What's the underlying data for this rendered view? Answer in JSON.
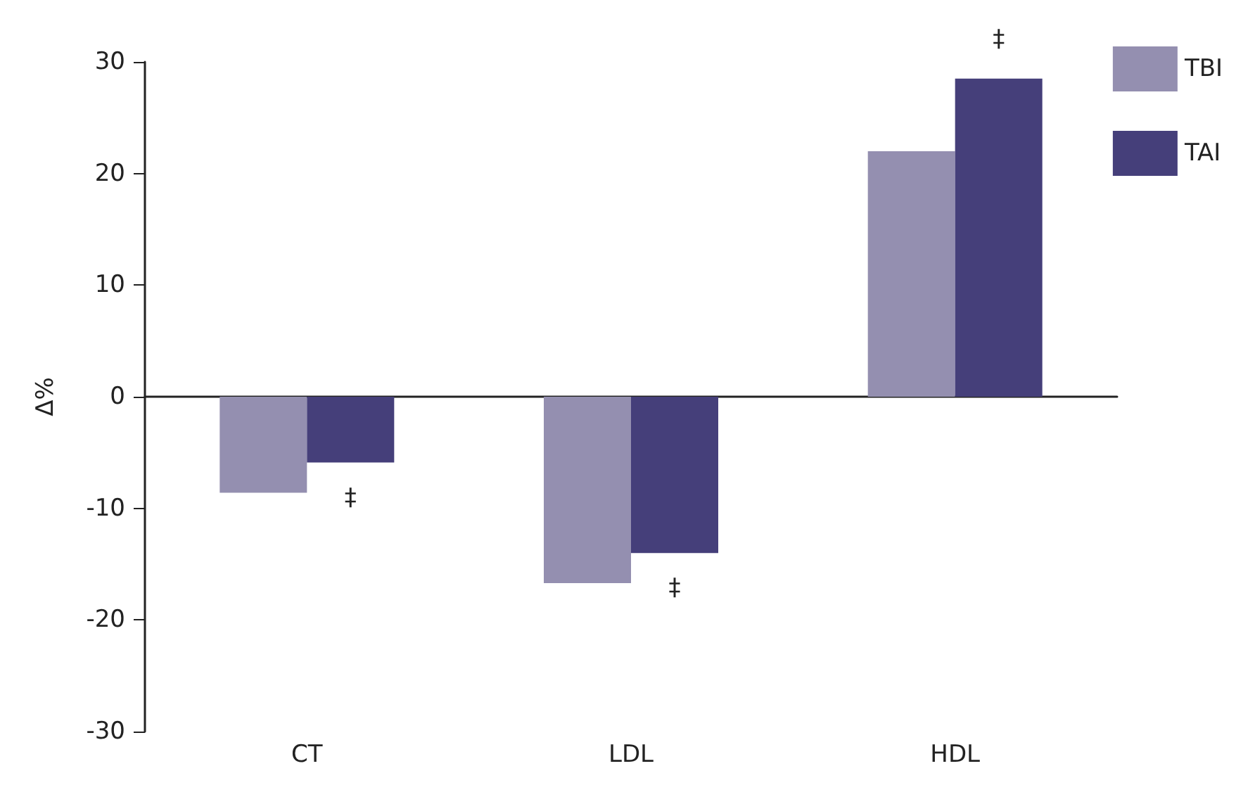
{
  "chart_data": {
    "type": "bar",
    "ylabel": "Δ%",
    "categories": [
      "CT",
      "LDL",
      "HDL"
    ],
    "series": [
      {
        "name": "TBI",
        "color": "#948fb0",
        "values": [
          -8.6,
          -16.7,
          22
        ]
      },
      {
        "name": "TAI",
        "color": "#453f7a",
        "values": [
          -5.9,
          -14,
          28.5
        ]
      }
    ],
    "ylim": [
      -30,
      30
    ],
    "yticks": [
      -30,
      -20,
      -10,
      0,
      10,
      20,
      30
    ],
    "legend": "top right",
    "annotations": [
      {
        "text": "‡",
        "x": "CT",
        "y": -5.9
      },
      {
        "text": "‡",
        "x": "LDL",
        "y": -14
      },
      {
        "text": "‡",
        "x": "HDL",
        "y": 28.5
      }
    ]
  }
}
